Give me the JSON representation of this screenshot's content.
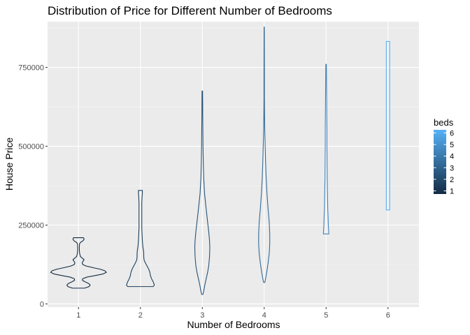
{
  "chart_data": {
    "type": "violin",
    "title": "Distribution of Price for Different Number of Bedrooms",
    "xlabel": "Number of Bedrooms",
    "ylabel": "House Price",
    "categories": [
      "1",
      "2",
      "3",
      "4",
      "5",
      "6"
    ],
    "y_ticks": [
      0,
      250000,
      500000,
      750000
    ],
    "y_tick_labels": [
      "0",
      "250000",
      "500000",
      "750000"
    ],
    "ylim": [
      -10000,
      895000
    ],
    "grid": true,
    "legend": {
      "title": "beds",
      "position": "right",
      "ticks": [
        1,
        2,
        3,
        4,
        5,
        6
      ],
      "color_low": "#132B43",
      "color_high": "#56B1F7"
    },
    "series": [
      {
        "beds": 1,
        "color": "#132B43",
        "min": 50000,
        "max": 210000,
        "profile": [
          [
            50000,
            0.22
          ],
          [
            55000,
            0.38
          ],
          [
            60000,
            0.42
          ],
          [
            65000,
            0.36
          ],
          [
            70000,
            0.24
          ],
          [
            75000,
            0.14
          ],
          [
            80000,
            0.15
          ],
          [
            85000,
            0.3
          ],
          [
            90000,
            0.6
          ],
          [
            95000,
            0.88
          ],
          [
            100000,
            1.0
          ],
          [
            105000,
            0.95
          ],
          [
            110000,
            0.78
          ],
          [
            115000,
            0.52
          ],
          [
            120000,
            0.28
          ],
          [
            125000,
            0.15
          ],
          [
            130000,
            0.13
          ],
          [
            135000,
            0.16
          ],
          [
            140000,
            0.2
          ],
          [
            145000,
            0.14
          ],
          [
            150000,
            0.07
          ],
          [
            160000,
            0.04
          ],
          [
            170000,
            0.03
          ],
          [
            180000,
            0.03
          ],
          [
            190000,
            0.035
          ],
          [
            195000,
            0.07
          ],
          [
            200000,
            0.16
          ],
          [
            205000,
            0.2
          ],
          [
            210000,
            0.18
          ]
        ]
      },
      {
        "beds": 2,
        "color": "#1D3F5D",
        "min": 55000,
        "max": 360000,
        "profile": [
          [
            55000,
            0.46
          ],
          [
            60000,
            0.5
          ],
          [
            70000,
            0.46
          ],
          [
            80000,
            0.4
          ],
          [
            90000,
            0.36
          ],
          [
            100000,
            0.34
          ],
          [
            110000,
            0.3
          ],
          [
            120000,
            0.24
          ],
          [
            130000,
            0.18
          ],
          [
            140000,
            0.13
          ],
          [
            150000,
            0.12
          ],
          [
            160000,
            0.12
          ],
          [
            170000,
            0.11
          ],
          [
            180000,
            0.09
          ],
          [
            190000,
            0.08
          ],
          [
            200000,
            0.07
          ],
          [
            220000,
            0.06
          ],
          [
            240000,
            0.05
          ],
          [
            260000,
            0.05
          ],
          [
            280000,
            0.05
          ],
          [
            300000,
            0.05
          ],
          [
            320000,
            0.05
          ],
          [
            340000,
            0.06
          ],
          [
            350000,
            0.07
          ],
          [
            360000,
            0.07
          ]
        ]
      },
      {
        "beds": 3,
        "color": "#275379",
        "min": 30000,
        "max": 675000,
        "profile": [
          [
            30000,
            0.02
          ],
          [
            40000,
            0.05
          ],
          [
            60000,
            0.09
          ],
          [
            80000,
            0.14
          ],
          [
            100000,
            0.19
          ],
          [
            120000,
            0.23
          ],
          [
            150000,
            0.26
          ],
          [
            180000,
            0.27
          ],
          [
            200000,
            0.26
          ],
          [
            230000,
            0.23
          ],
          [
            260000,
            0.19
          ],
          [
            300000,
            0.14
          ],
          [
            350000,
            0.08
          ],
          [
            400000,
            0.05
          ],
          [
            450000,
            0.035
          ],
          [
            500000,
            0.025
          ],
          [
            550000,
            0.02
          ],
          [
            600000,
            0.015
          ],
          [
            650000,
            0.012
          ],
          [
            675000,
            0.01
          ]
        ]
      },
      {
        "beds": 4,
        "color": "#326A97",
        "min": 68000,
        "max": 878000,
        "profile": [
          [
            68000,
            0.02
          ],
          [
            80000,
            0.05
          ],
          [
            100000,
            0.09
          ],
          [
            130000,
            0.14
          ],
          [
            160000,
            0.18
          ],
          [
            190000,
            0.2
          ],
          [
            220000,
            0.2
          ],
          [
            260000,
            0.18
          ],
          [
            300000,
            0.14
          ],
          [
            350000,
            0.1
          ],
          [
            400000,
            0.07
          ],
          [
            450000,
            0.05
          ],
          [
            500000,
            0.035
          ],
          [
            550000,
            0.02
          ],
          [
            600000,
            0.012
          ],
          [
            650000,
            0.008
          ],
          [
            700000,
            0.008
          ],
          [
            750000,
            0.007
          ],
          [
            800000,
            0.006
          ],
          [
            850000,
            0.005
          ],
          [
            878000,
            0.004
          ]
        ]
      },
      {
        "beds": 5,
        "color": "#3F83BC",
        "min": 222000,
        "max": 760000,
        "profile": [
          [
            222000,
            0.1
          ],
          [
            250000,
            0.08
          ],
          [
            280000,
            0.07
          ],
          [
            300000,
            0.06
          ],
          [
            350000,
            0.05
          ],
          [
            400000,
            0.04
          ],
          [
            450000,
            0.035
          ],
          [
            500000,
            0.03
          ],
          [
            550000,
            0.03
          ],
          [
            600000,
            0.025
          ],
          [
            650000,
            0.02
          ],
          [
            700000,
            0.015
          ],
          [
            740000,
            0.012
          ],
          [
            760000,
            0.01
          ]
        ]
      },
      {
        "beds": 6,
        "color": "#56B1F7",
        "min": 298000,
        "max": 832000,
        "profile": [
          [
            298000,
            0.06
          ],
          [
            832000,
            0.06
          ]
        ]
      }
    ]
  }
}
